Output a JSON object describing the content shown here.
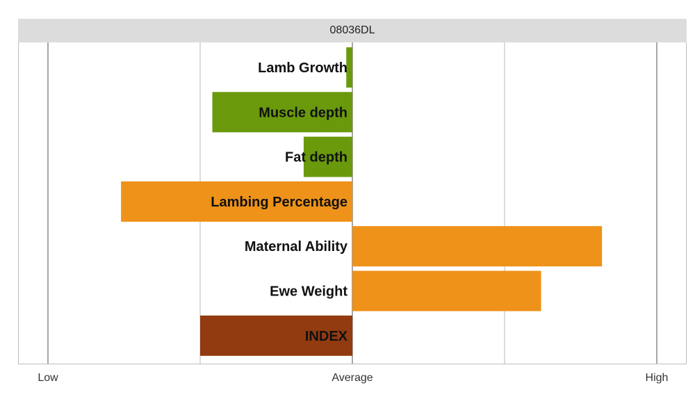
{
  "chart_data": {
    "type": "bar",
    "orientation": "horizontal",
    "title": "08036DL",
    "xlabel": "",
    "ylabel": "",
    "xlim": [
      -1,
      1
    ],
    "x_ticks": [
      {
        "value": -1,
        "label": "Low"
      },
      {
        "value": 0,
        "label": "Average"
      },
      {
        "value": 1,
        "label": "High"
      }
    ],
    "gridlines": [
      -1,
      -0.5,
      0,
      0.5,
      1
    ],
    "grid": true,
    "categories": [
      "Lamb Growth",
      "Muscle depth",
      "Fat depth",
      "Lambing Percentage",
      "Maternal Ability",
      "Ewe Weight",
      "INDEX"
    ],
    "values": [
      -0.02,
      -0.46,
      -0.16,
      -0.76,
      0.82,
      0.62,
      -0.5
    ],
    "colors": [
      "#6a9a0c",
      "#6a9a0c",
      "#6a9a0c",
      "#ee9219",
      "#ee9219",
      "#ee9219",
      "#923a10"
    ],
    "legend": "none"
  }
}
